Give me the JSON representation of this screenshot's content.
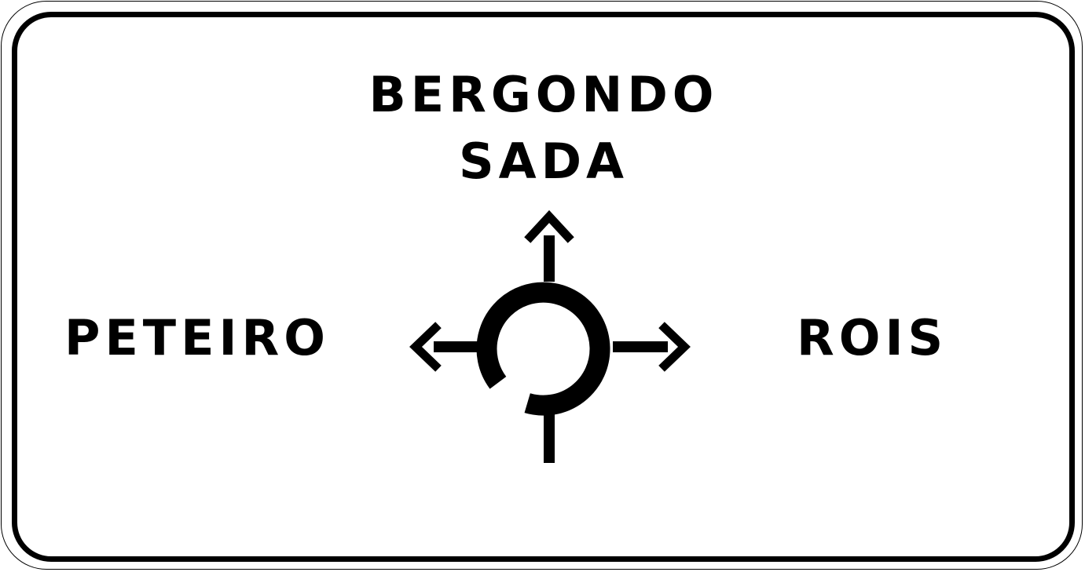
{
  "sign": {
    "background_color": "#ffffff",
    "border_color": "#000000",
    "symbol": "roundabout-icon",
    "destinations": {
      "straight": [
        "BERGONDO",
        "SADA"
      ],
      "left": "PETEIRO",
      "right": "ROIS"
    }
  }
}
